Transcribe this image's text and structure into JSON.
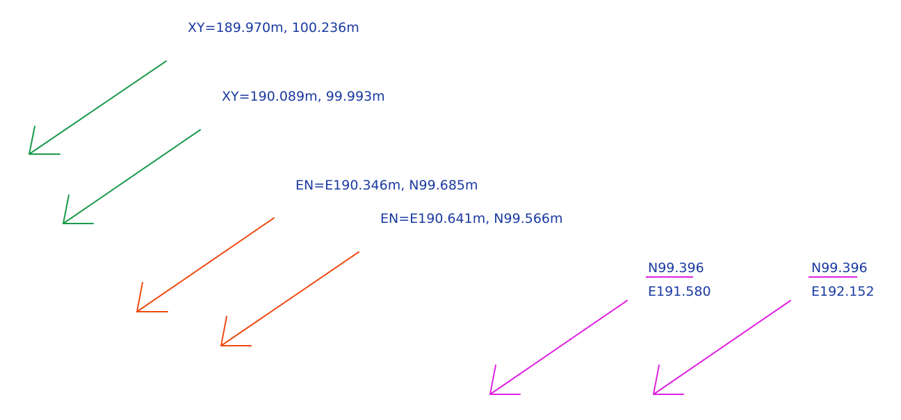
{
  "colors": {
    "text": "#1a3aa0",
    "green": "#1a9a4a",
    "orange": "#f04a10",
    "magenta": "#e020e0"
  },
  "markers": [
    {
      "id": "xy-1",
      "style": "green",
      "label": "XY=189.970m, 100.236m"
    },
    {
      "id": "xy-2",
      "style": "green",
      "label": "XY=190.089m, 99.993m"
    },
    {
      "id": "en-1",
      "style": "orange",
      "label": "EN=E190.346m, N99.685m"
    },
    {
      "id": "en-2",
      "style": "orange",
      "label": "EN=E190.641m, N99.566m"
    },
    {
      "id": "ne-1",
      "style": "magenta",
      "north": "N99.396",
      "east": "E191.580"
    },
    {
      "id": "ne-2",
      "style": "magenta",
      "north": "N99.396",
      "east": "E192.152"
    }
  ]
}
